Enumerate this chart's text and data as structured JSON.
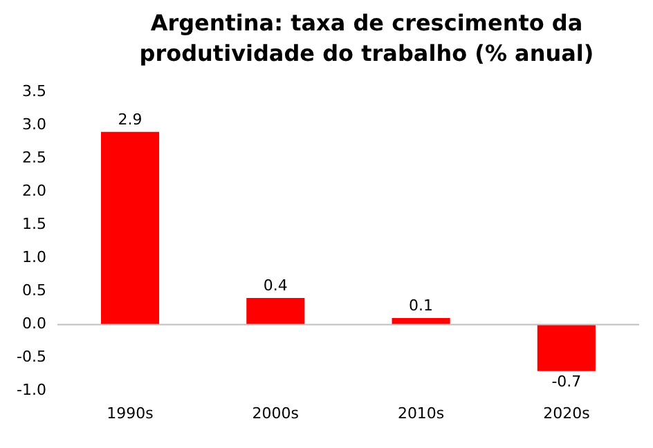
{
  "chart_data": {
    "type": "bar",
    "title": "Argentina: taxa de crescimento da produtividade do trabalho (% anual)",
    "categories": [
      "1990s",
      "2000s",
      "2010s",
      "2020s"
    ],
    "values": [
      2.9,
      0.4,
      0.1,
      -0.7
    ],
    "color": "#ff0000",
    "ylim": [
      -1.0,
      3.5
    ],
    "yticks": [
      {
        "value": -1,
        "label": "-1.0"
      },
      {
        "value": -0.5,
        "label": "-0.5"
      },
      {
        "value": 0,
        "label": "0.0"
      },
      {
        "value": 0.5,
        "label": "0.5"
      },
      {
        "value": 1,
        "label": "1.0"
      },
      {
        "value": 1.5,
        "label": "1.5"
      },
      {
        "value": 2,
        "label": "2.0"
      },
      {
        "value": 2.5,
        "label": "2.5"
      },
      {
        "value": 3,
        "label": "3.0"
      },
      {
        "value": 3.5,
        "label": "3.5"
      }
    ],
    "ref_lines": [
      {
        "axis": "y",
        "value": 0,
        "color": "#bfbfbf"
      }
    ],
    "data_labels": true,
    "grid": false,
    "legend": false
  }
}
